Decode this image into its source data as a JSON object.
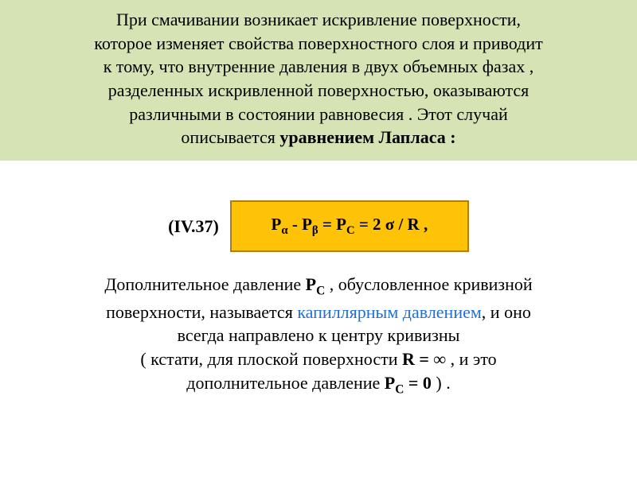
{
  "colors": {
    "top_box_bg": "#d5e3b5",
    "formula_bg": "#fec306",
    "formula_border": "#ae7d16",
    "link_blue": "#2270d7",
    "text": "#000000",
    "page_bg": "#ffffff"
  },
  "top": {
    "line1": "При смачивании возникает искривление поверхности,",
    "line2": "которое изменяет свойства поверхностного слоя и приводит",
    "line3": "к тому, что внутренние давления в двух объемных фазах ,",
    "line4": "разделенных искривленной поверхностью, оказываются",
    "line5": "различными в состоянии равновесия . Этот случай",
    "line6a": "описывается ",
    "line6b": "уравнением Лапласа :"
  },
  "formula": {
    "label": "(IV.37)",
    "before_sub1": "P",
    "sub1": "α",
    "mid1": "  -  P",
    "sub2": "β",
    "mid2": "  = P",
    "sub3": "C",
    "after": "   =   2 σ / R  ,"
  },
  "bottom": {
    "p1a": "Дополнительное давление ",
    "p1b_bold": "P",
    "p1b_sub": "C",
    "p1c": "  , обусловленное кривизной",
    "p2a": "поверхности, называется ",
    "p2b_blue": "капиллярным давлением",
    "p2c": ",  и оно",
    "p3": "всегда направлено  к  центру   кривизны",
    "p4a": "( кстати, для плоской поверхности  ",
    "p4b_bold": "R = ∞",
    "p4c": "  ,  и это",
    "p5a": "дополнительное давление  ",
    "p5b_bold": "P",
    "p5b_sub": "C",
    "p5c_bold": " = 0",
    "p5d": " ) ."
  }
}
